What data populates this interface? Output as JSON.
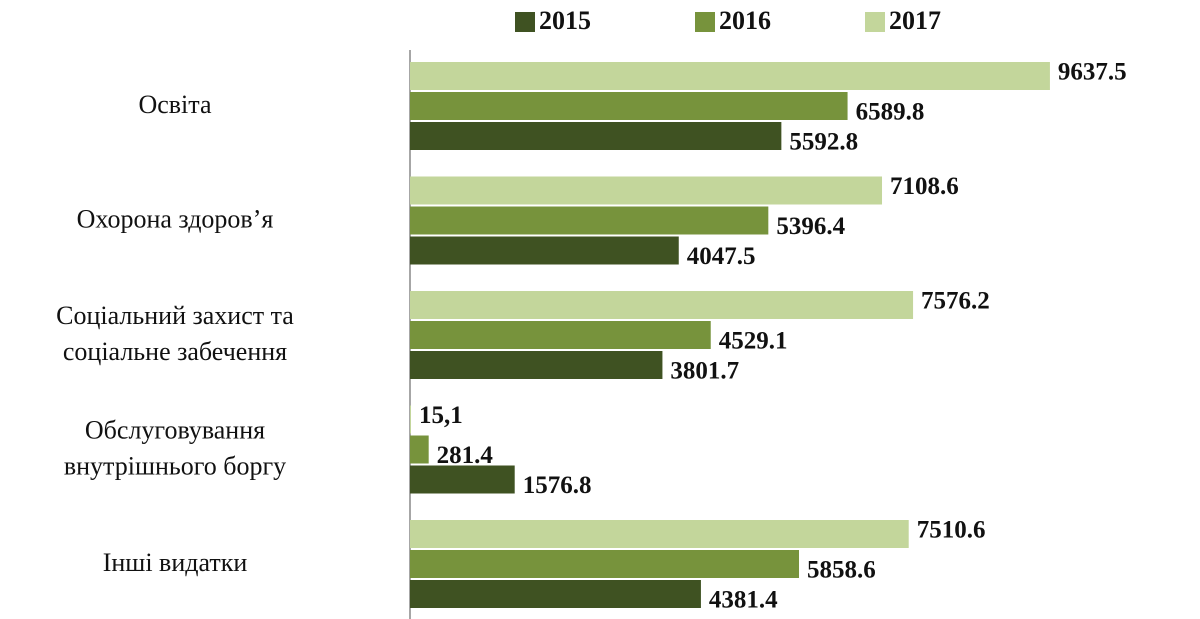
{
  "chart_data": {
    "type": "hbar",
    "categories": [
      "Освіта",
      "Охорона здоров’я",
      "Соціальний захист та\nсоціальне забечення",
      "Обслуговування\nвнутрішнього боргу",
      "Інші видатки"
    ],
    "series": [
      {
        "name": "2015",
        "color": "#3f5222",
        "values": [
          5592.8,
          4047.5,
          3801.7,
          1576.8,
          4381.4
        ]
      },
      {
        "name": "2016",
        "color": "#77933c",
        "values": [
          6589.8,
          5396.4,
          4529.1,
          281.4,
          5858.6
        ]
      },
      {
        "name": "2017",
        "color": "#c3d69b",
        "values": [
          9637.5,
          7108.6,
          7576.2,
          15.1,
          7510.6
        ],
        "value_labels": [
          "9637.5",
          "7108.6",
          "7576.2",
          "15,1",
          "7510.6"
        ]
      }
    ],
    "xlim": [
      0,
      10000
    ]
  }
}
